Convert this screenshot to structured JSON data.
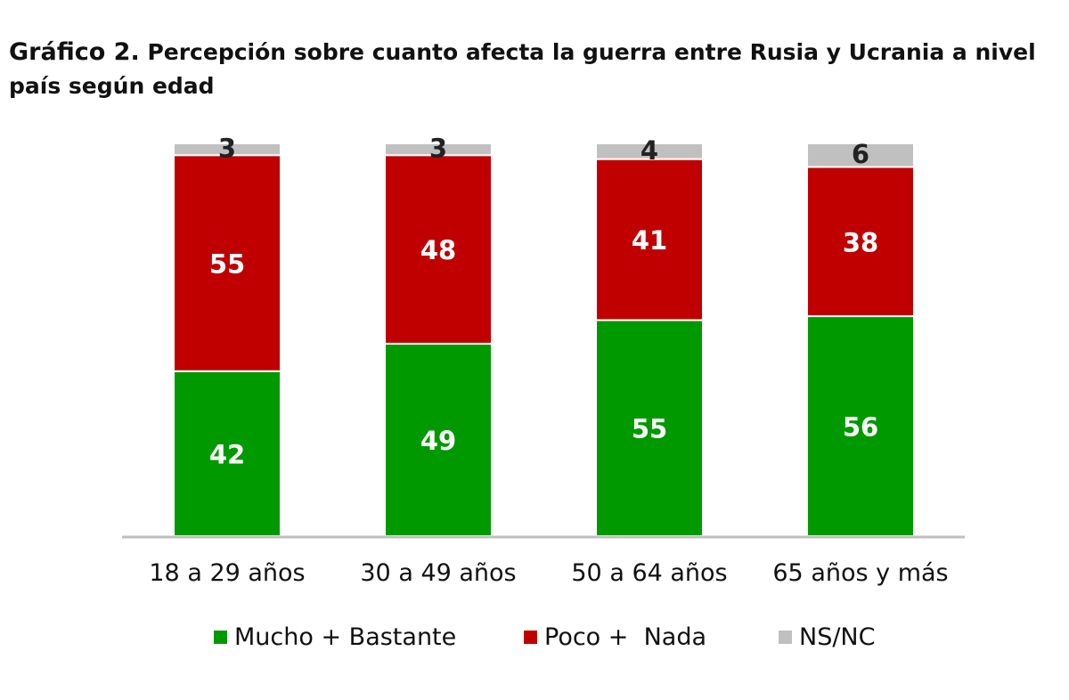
{
  "title": {
    "lead": "Gráfico 2.",
    "text": "Percepción sobre cuanto afecta la guerra entre Rusia y Ucrania a nivel país según edad"
  },
  "colors": {
    "mucho_bastante": "#009900",
    "poco_nada": "#C00000",
    "ns_nc": "#C0C0C0"
  },
  "chart_data": {
    "type": "bar",
    "stacked": true,
    "categories": [
      "18 a 29 años",
      "30 a 49 años",
      "50 a 64 años",
      "65 años y más"
    ],
    "series": [
      {
        "name": "Mucho + Bastante",
        "values": [
          42,
          49,
          55,
          56
        ],
        "color": "#009900"
      },
      {
        "name": "Poco +  Nada",
        "values": [
          55,
          48,
          41,
          38
        ],
        "color": "#C00000"
      },
      {
        "name": "NS/NC",
        "values": [
          3,
          3,
          4,
          6
        ],
        "color": "#C0C0C0"
      }
    ],
    "ylim": [
      0,
      100
    ],
    "grid": false,
    "legend_position": "bottom"
  }
}
